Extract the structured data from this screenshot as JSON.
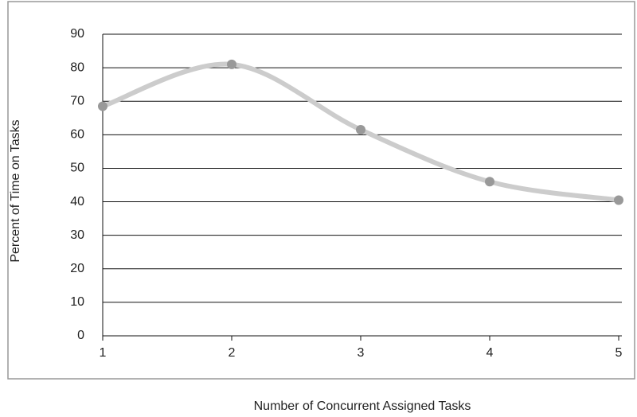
{
  "chart_data": {
    "type": "line",
    "x": [
      1,
      2,
      3,
      4,
      5
    ],
    "series": [
      {
        "name": "Percent of Time on Tasks",
        "color": "#cccccc",
        "marker_color": "#999999",
        "values": [
          68.5,
          81,
          61.5,
          46,
          40.5
        ]
      }
    ],
    "xlabel": "Number of Concurrent Assigned Tasks",
    "ylabel": "Percent of Time on Tasks",
    "xlim": [
      1,
      5
    ],
    "xticks": [
      1,
      2,
      3,
      4,
      5
    ],
    "ylim": [
      0,
      90
    ],
    "yticks": [
      0,
      10,
      20,
      30,
      40,
      50,
      60,
      70,
      80,
      90
    ],
    "grid": true,
    "smooth": true
  }
}
